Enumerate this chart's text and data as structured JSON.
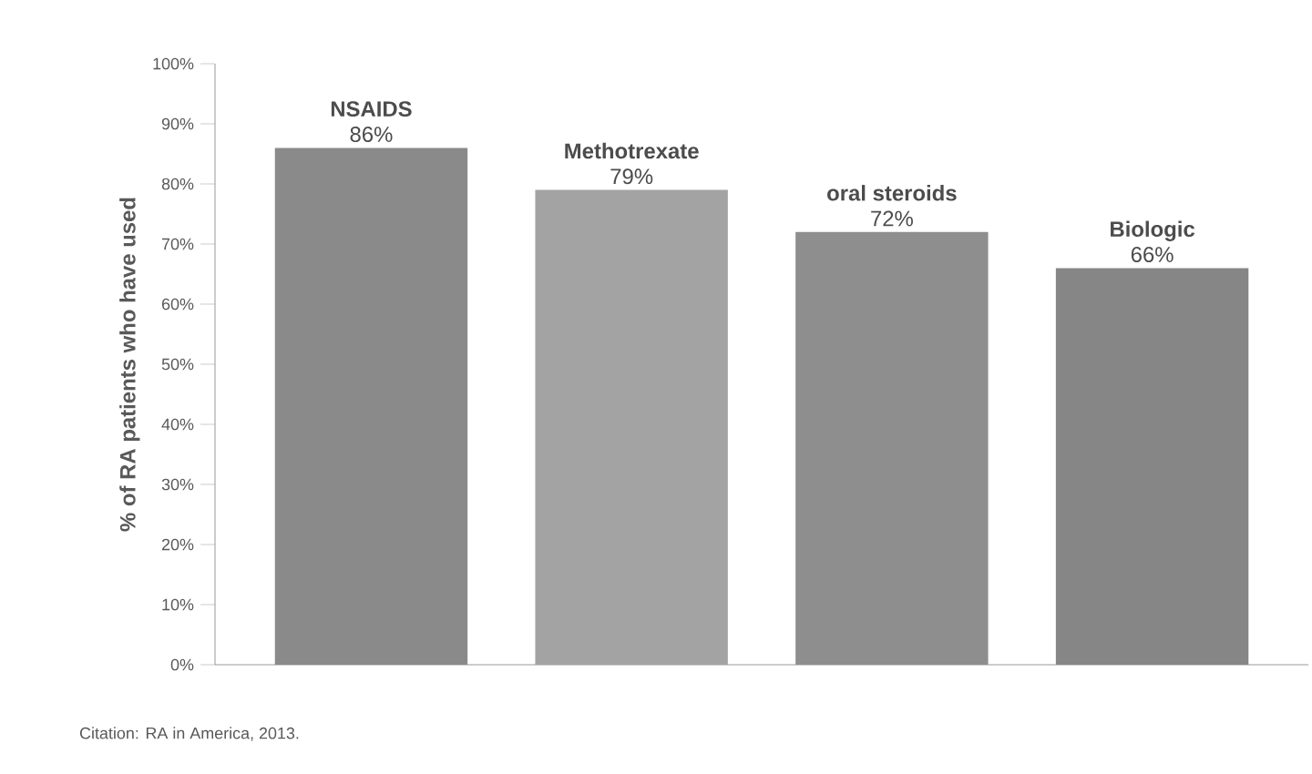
{
  "chart_data": {
    "type": "bar",
    "ylabel": "% of RA patients who have used",
    "categories": [
      "NSAIDS",
      "Methotrexate",
      "oral steroids",
      "Biologic"
    ],
    "values": [
      86,
      79,
      72,
      66
    ],
    "value_labels": [
      "86%",
      "79%",
      "72%",
      "66%"
    ],
    "colors": [
      "#8a8a8a",
      "#a3a3a3",
      "#8e8e8e",
      "#868686"
    ],
    "ylim": [
      0,
      100
    ],
    "yticks": [
      {
        "value": 0,
        "label": "0%"
      },
      {
        "value": 10,
        "label": "10%"
      },
      {
        "value": 20,
        "label": "20%"
      },
      {
        "value": 30,
        "label": "30%"
      },
      {
        "value": 40,
        "label": "40%"
      },
      {
        "value": 50,
        "label": "50%"
      },
      {
        "value": 60,
        "label": "60%"
      },
      {
        "value": 70,
        "label": "70%"
      },
      {
        "value": 80,
        "label": "80%"
      },
      {
        "value": 90,
        "label": "90%"
      },
      {
        "value": 100,
        "label": "100%"
      }
    ],
    "annotations": [
      "Citation: RA in America, 2013."
    ]
  }
}
